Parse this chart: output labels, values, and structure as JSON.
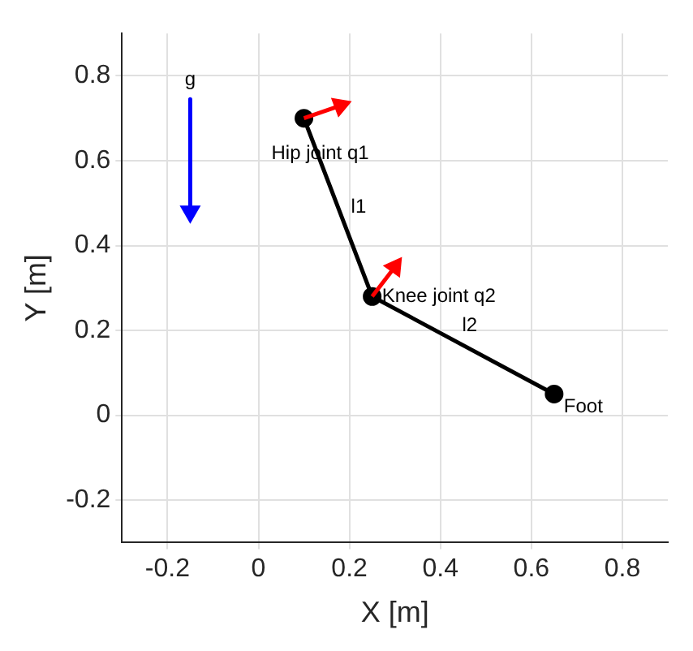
{
  "chart_data": {
    "type": "line",
    "xlabel": "X [m]",
    "ylabel": "Y [m]",
    "xlim": [
      -0.3,
      0.9
    ],
    "ylim": [
      -0.3,
      0.9
    ],
    "xticks": [
      -0.2,
      0,
      0.2,
      0.4,
      0.6,
      0.8
    ],
    "yticks": [
      -0.2,
      0,
      0.2,
      0.4,
      0.6,
      0.8
    ],
    "grid": true,
    "legend": false,
    "line_style": "solid",
    "series": [
      {
        "color": "#000000",
        "x": [
          0.1,
          0.25,
          0.65
        ],
        "values": [
          0.7,
          0.28,
          0.05
        ],
        "marker": "circle"
      },
      {
        "color": "#ff0000",
        "x": [
          0.1,
          0.18
        ],
        "values": [
          0.7,
          0.73
        ],
        "marker": "triangle"
      },
      {
        "color": "#ff0000",
        "x": [
          0.25,
          0.3
        ],
        "values": [
          0.28,
          0.35
        ],
        "marker": "triangle"
      },
      {
        "color": "#0000ff",
        "x": [
          -0.15,
          -0.15
        ],
        "values": [
          0.745,
          0.48
        ],
        "marker": "triangle"
      }
    ],
    "annotations": [
      {
        "text": "g",
        "x": -0.15,
        "y": 0.745
      },
      {
        "text": "Hip joint q1",
        "x": 0.1,
        "y": 0.7
      },
      {
        "text": "l1",
        "x": 0.175,
        "y": 0.49
      },
      {
        "text": "Knee joint q2",
        "x": 0.25,
        "y": 0.28
      },
      {
        "text": "l2",
        "x": 0.45,
        "y": 0.165
      },
      {
        "text": "Foot",
        "x": 0.65,
        "y": 0.05
      }
    ]
  }
}
